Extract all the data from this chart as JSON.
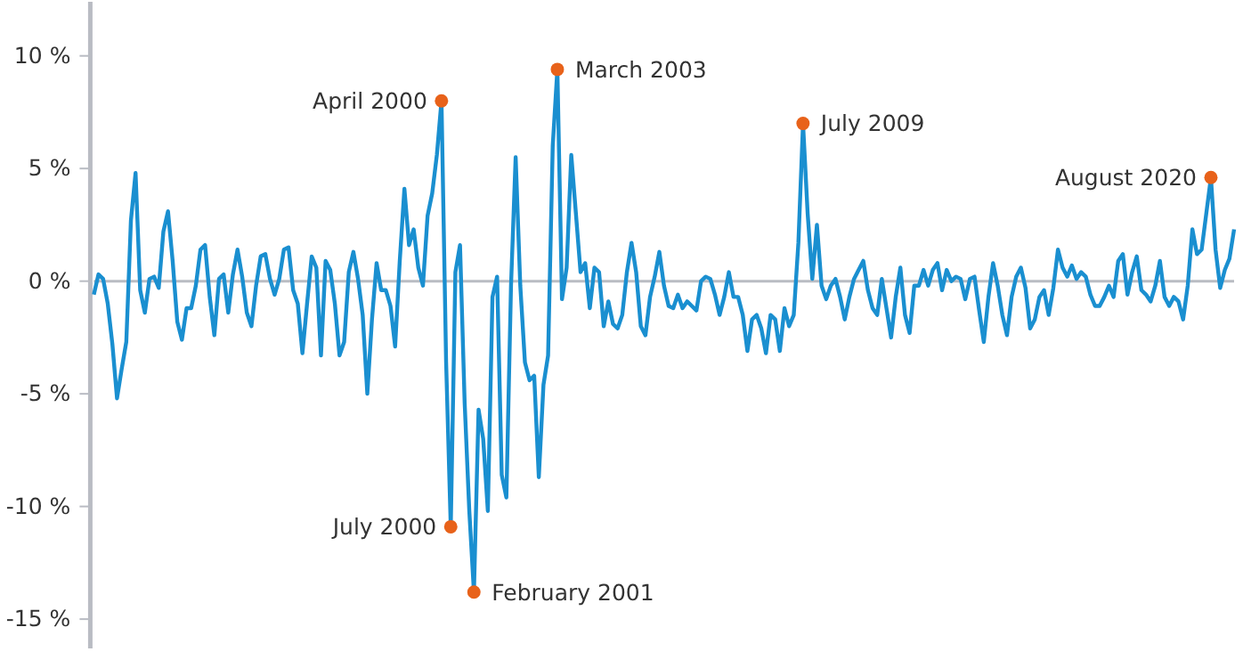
{
  "chart_data": {
    "type": "line",
    "ylim": [
      -16.3,
      12.4
    ],
    "yticks": [
      {
        "value": 10,
        "label": "10 %"
      },
      {
        "value": 5,
        "label": "5 %"
      },
      {
        "value": 0,
        "label": "0 %"
      },
      {
        "value": -5,
        "label": "-5 %"
      },
      {
        "value": -10,
        "label": "-10 %"
      },
      {
        "value": -15,
        "label": "-15 %"
      }
    ],
    "tick_labels": "y",
    "marker": "none",
    "line_style": "solid",
    "categories": [
      null,
      null,
      null,
      null,
      null,
      null,
      null,
      null,
      null,
      null,
      null,
      null,
      null,
      null,
      null,
      null,
      null,
      null,
      null,
      null,
      null,
      null,
      null,
      null,
      null,
      null,
      null,
      null,
      null,
      null,
      null,
      null,
      null,
      null,
      null,
      null,
      null,
      null,
      null,
      null,
      null,
      null,
      null,
      null,
      null,
      null,
      null,
      null,
      null,
      null,
      null,
      null,
      null,
      null,
      null,
      null,
      null,
      null,
      null,
      null,
      null,
      null,
      null,
      null,
      null,
      null,
      null,
      null,
      null,
      null,
      null,
      null,
      null,
      null,
      null,
      null,
      null,
      null,
      null,
      null,
      null,
      null,
      null,
      null,
      null,
      null,
      null,
      null,
      null,
      null,
      null,
      null,
      null,
      null,
      null,
      null,
      null,
      null,
      null,
      null,
      null,
      null,
      null,
      null,
      null,
      null,
      null,
      null,
      null,
      null,
      null,
      null,
      null,
      null,
      null,
      null,
      null,
      null,
      null,
      null,
      null,
      null,
      null,
      null,
      null,
      null,
      null,
      null,
      null,
      null,
      null,
      null,
      null,
      null,
      null,
      null,
      null,
      null,
      null,
      null,
      null,
      null,
      null,
      null,
      null,
      null,
      null,
      null,
      null,
      null,
      null,
      null,
      null,
      null,
      null,
      null,
      null,
      null,
      null,
      null,
      null,
      null,
      null,
      null,
      null,
      null,
      null,
      null,
      null,
      null,
      null,
      null,
      null,
      null,
      null,
      null,
      null,
      null,
      null,
      null,
      null,
      null,
      null,
      null,
      null,
      null,
      null,
      null,
      null,
      null,
      null,
      null,
      null,
      null,
      null,
      null,
      null,
      null,
      null,
      null,
      null,
      null,
      null,
      null,
      null,
      null,
      null,
      null,
      null,
      null,
      null,
      null,
      null,
      null,
      null,
      null,
      null,
      null,
      null,
      null,
      null,
      null,
      null,
      null,
      null,
      null,
      null,
      null,
      null,
      null,
      null,
      null,
      null,
      null,
      null,
      null,
      null,
      null,
      null,
      null,
      null,
      null,
      null,
      null,
      null,
      null,
      null
    ],
    "series": [
      {
        "color": "#1a8fd0",
        "values": [
          -0.6,
          0.3,
          0.1,
          -1,
          -2.8,
          -5.2,
          -3.9,
          -2.7,
          2.7,
          4.8,
          -0.4,
          -1.4,
          0.1,
          0.2,
          -0.3,
          2.2,
          3.1,
          0.9,
          -1.8,
          -2.6,
          -1.2,
          -1.2,
          -0.2,
          1.4,
          1.6,
          -0.7,
          -2.4,
          0.1,
          0.3,
          -1.4,
          0.3,
          1.4,
          0.2,
          -1.4,
          -2,
          -0.2,
          1.1,
          1.2,
          0.1,
          -0.6,
          0.1,
          1.4,
          1.5,
          -0.4,
          -1,
          -3.2,
          -1,
          1.1,
          0.6,
          -3.3,
          0.9,
          0.5,
          -1,
          -3.3,
          -2.7,
          0.4,
          1.3,
          0.1,
          -1.5,
          -5,
          -1.7,
          0.8,
          -0.4,
          -0.4,
          -1.1,
          -2.9,
          0.9,
          4.1,
          1.6,
          2.3,
          0.6,
          -0.2,
          2.9,
          3.9,
          5.6,
          8,
          -3.6,
          -10.9,
          0.4,
          1.6,
          -5.4,
          -10.2,
          -13.8,
          -5.7,
          -7,
          -10.2,
          -0.7,
          0.2,
          -8.6,
          -9.6,
          -0.2,
          5.5,
          -0.2,
          -3.6,
          -4.4,
          -4.2,
          -8.7,
          -4.6,
          -3.3,
          6,
          9.4,
          -0.8,
          0.6,
          5.6,
          3,
          0.4,
          0.8,
          -1.2,
          0.6,
          0.4,
          -2,
          -0.9,
          -1.9,
          -2.1,
          -1.5,
          0.4,
          1.7,
          0.4,
          -2,
          -2.4,
          -0.7,
          0.2,
          1.3,
          -0.2,
          -1.1,
          -1.2,
          -0.6,
          -1.2,
          -0.9,
          -1.1,
          -1.3,
          0,
          0.2,
          0.1,
          -0.6,
          -1.5,
          -0.7,
          0.4,
          -0.7,
          -0.7,
          -1.5,
          -3.1,
          -1.7,
          -1.5,
          -2.1,
          -3.2,
          -1.5,
          -1.7,
          -3.1,
          -1.2,
          -2,
          -1.5,
          1.7,
          7,
          3,
          0.1,
          2.5,
          -0.2,
          -0.8,
          -0.2,
          0.1,
          -0.7,
          -1.7,
          -0.7,
          0.1,
          0.5,
          0.9,
          -0.4,
          -1.2,
          -1.5,
          0.1,
          -1.2,
          -2.5,
          -0.7,
          0.6,
          -1.5,
          -2.3,
          -0.2,
          -0.2,
          0.5,
          -0.2,
          0.5,
          0.8,
          -0.4,
          0.5,
          0,
          0.2,
          0.1,
          -0.8,
          0.1,
          0.2,
          -1.3,
          -2.7,
          -0.7,
          0.8,
          -0.2,
          -1.5,
          -2.4,
          -0.7,
          0.2,
          0.6,
          -0.3,
          -2.1,
          -1.7,
          -0.7,
          -0.4,
          -1.5,
          -0.3,
          1.4,
          0.6,
          0.2,
          0.7,
          0.1,
          0.4,
          0.2,
          -0.6,
          -1.1,
          -1.1,
          -0.7,
          -0.2,
          -0.7,
          0.9,
          1.2,
          -0.6,
          0.4,
          1.1,
          -0.4,
          -0.6,
          -0.9,
          -0.2,
          0.9,
          -0.7,
          -1.1,
          -0.7,
          -0.9,
          -1.7,
          -0.2,
          2.3,
          1.2,
          1.4,
          3,
          4.6,
          1.4,
          -0.3,
          0.5,
          1,
          2.3
        ]
      },
      {
        "type": "scatter",
        "color": "#e8621a",
        "marker": "circle",
        "values": [
          null,
          null,
          null,
          null,
          null,
          null,
          null,
          null,
          null,
          null,
          null,
          null,
          null,
          null,
          null,
          null,
          null,
          null,
          null,
          null,
          null,
          null,
          null,
          null,
          null,
          null,
          null,
          null,
          null,
          null,
          null,
          null,
          null,
          null,
          null,
          null,
          null,
          null,
          null,
          null,
          null,
          null,
          null,
          null,
          null,
          null,
          null,
          null,
          null,
          null,
          null,
          null,
          null,
          null,
          null,
          null,
          null,
          null,
          null,
          null,
          null,
          null,
          null,
          null,
          null,
          null,
          null,
          null,
          null,
          null,
          null,
          null,
          null,
          null,
          null,
          8,
          null,
          -10.9,
          null,
          null,
          null,
          null,
          -13.8,
          null,
          null,
          null,
          null,
          null,
          null,
          null,
          null,
          null,
          null,
          null,
          null,
          null,
          null,
          null,
          null,
          null,
          9.4,
          null,
          null,
          null,
          null,
          null,
          null,
          null,
          null,
          null,
          null,
          null,
          null,
          null,
          null,
          null,
          null,
          null,
          null,
          null,
          null,
          null,
          null,
          null,
          null,
          null,
          null,
          null,
          null,
          null,
          null,
          null,
          null,
          null,
          null,
          null,
          null,
          null,
          null,
          null,
          null,
          null,
          null,
          null,
          null,
          null,
          null,
          null,
          null,
          null,
          null,
          null,
          null,
          7,
          null,
          null,
          null,
          null,
          null,
          null,
          null,
          null,
          null,
          null,
          null,
          null,
          null,
          null,
          null,
          null,
          null,
          null,
          null,
          null,
          null,
          null,
          null,
          null,
          null,
          null,
          null,
          null,
          null,
          null,
          null,
          null,
          null,
          null,
          null,
          null,
          null,
          null,
          null,
          null,
          null,
          null,
          null,
          null,
          null,
          null,
          null,
          null,
          null,
          null,
          null,
          null,
          null,
          null,
          null,
          null,
          null,
          null,
          null,
          null,
          null,
          null,
          null,
          null,
          null,
          null,
          null,
          null,
          null,
          null,
          null,
          null,
          null,
          null,
          null,
          null,
          null,
          null,
          null,
          null,
          null,
          null,
          null,
          null,
          null,
          null,
          null,
          4.6,
          null,
          null,
          null,
          null,
          null
        ]
      }
    ],
    "annotations": [
      "April 2000",
      "July 2000",
      "February 2001",
      "March 2003",
      "July 2009",
      "August 2020"
    ]
  }
}
